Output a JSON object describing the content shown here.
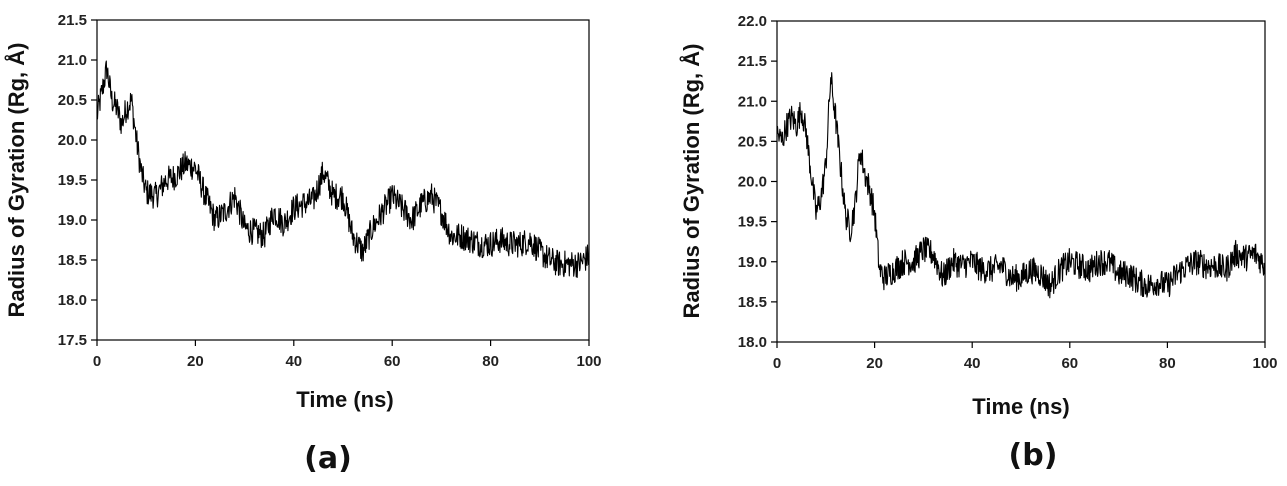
{
  "colors": {
    "line": "#000000",
    "axis": "#000000",
    "background": "#ffffff"
  },
  "chart_data": [
    {
      "type": "line",
      "panel_label": "(a)",
      "xlabel": "Time (ns)",
      "ylabel": "Radius of Gyration (Rg, Å)",
      "xlim": [
        0,
        100
      ],
      "ylim": [
        17.5,
        21.5
      ],
      "xticks": [
        0,
        20,
        40,
        60,
        80,
        100
      ],
      "yticks": [
        17.5,
        18.0,
        18.5,
        19.0,
        19.5,
        20.0,
        20.5,
        21.0,
        21.5
      ],
      "xtick_labels": [
        "0",
        "20",
        "40",
        "60",
        "80",
        "100"
      ],
      "ytick_labels": [
        "17.5",
        "18.0",
        "18.5",
        "19.0",
        "19.5",
        "20.0",
        "20.5",
        "21.0",
        "21.5"
      ],
      "grid": false,
      "series": [
        {
          "x": [
            0,
            1,
            2,
            3,
            4,
            5,
            6,
            7,
            8,
            9,
            10,
            12,
            14,
            16,
            18,
            20,
            22,
            24,
            26,
            28,
            30,
            32,
            34,
            36,
            38,
            40,
            42,
            44,
            46,
            48,
            50,
            52,
            54,
            56,
            58,
            60,
            62,
            64,
            66,
            68,
            70,
            72,
            74,
            76,
            78,
            80,
            82,
            84,
            86,
            88,
            90,
            92,
            94,
            96,
            98,
            100
          ],
          "y": [
            20.3,
            20.6,
            20.9,
            20.5,
            20.4,
            20.2,
            20.4,
            20.5,
            20.0,
            19.6,
            19.35,
            19.3,
            19.5,
            19.55,
            19.7,
            19.65,
            19.3,
            19.0,
            19.1,
            19.3,
            18.9,
            18.85,
            18.8,
            19.1,
            18.95,
            19.15,
            19.2,
            19.25,
            19.6,
            19.3,
            19.3,
            18.8,
            18.6,
            18.9,
            19.1,
            19.3,
            19.15,
            19.0,
            19.2,
            19.3,
            19.1,
            18.8,
            18.8,
            18.75,
            18.7,
            18.7,
            18.75,
            18.7,
            18.7,
            18.75,
            18.6,
            18.5,
            18.45,
            18.45,
            18.45,
            18.55
          ]
        }
      ]
    },
    {
      "type": "line",
      "panel_label": "(b)",
      "xlabel": "Time (ns)",
      "ylabel": "Radius of Gyration (Rg, Å)",
      "xlim": [
        0,
        100
      ],
      "ylim": [
        18.0,
        22.0
      ],
      "xticks": [
        0,
        20,
        40,
        60,
        80,
        100
      ],
      "yticks": [
        18.0,
        18.5,
        19.0,
        19.5,
        20.0,
        20.5,
        21.0,
        21.5,
        22.0
      ],
      "xtick_labels": [
        "0",
        "20",
        "40",
        "60",
        "80",
        "100"
      ],
      "ytick_labels": [
        "18.0",
        "18.5",
        "19.0",
        "19.5",
        "20.0",
        "20.5",
        "21.0",
        "21.5",
        "22.0"
      ],
      "grid": false,
      "series": [
        {
          "x": [
            0,
            1,
            2,
            3,
            4,
            5,
            6,
            7,
            8,
            9,
            10,
            11,
            12,
            13,
            14,
            15,
            16,
            17,
            18,
            19,
            20,
            21,
            22,
            24,
            26,
            28,
            30,
            32,
            34,
            36,
            38,
            40,
            42,
            44,
            46,
            48,
            50,
            52,
            54,
            56,
            58,
            60,
            62,
            64,
            66,
            68,
            70,
            72,
            74,
            76,
            78,
            80,
            82,
            84,
            86,
            88,
            90,
            92,
            94,
            96,
            98,
            100
          ],
          "y": [
            20.6,
            20.5,
            20.7,
            20.8,
            20.7,
            20.9,
            20.6,
            20.1,
            19.6,
            19.8,
            20.2,
            21.3,
            20.8,
            20.2,
            19.6,
            19.4,
            19.7,
            20.4,
            20.1,
            19.9,
            19.6,
            18.9,
            18.8,
            18.9,
            19.0,
            19.0,
            19.15,
            19.1,
            18.8,
            19.0,
            18.95,
            19.0,
            18.9,
            18.9,
            18.95,
            18.8,
            18.8,
            18.9,
            18.85,
            18.7,
            18.9,
            19.0,
            18.95,
            18.9,
            19.0,
            19.0,
            18.85,
            18.85,
            18.75,
            18.7,
            18.75,
            18.7,
            18.85,
            18.95,
            19.0,
            18.95,
            18.95,
            18.9,
            19.1,
            19.05,
            19.1,
            18.95
          ]
        }
      ]
    }
  ]
}
